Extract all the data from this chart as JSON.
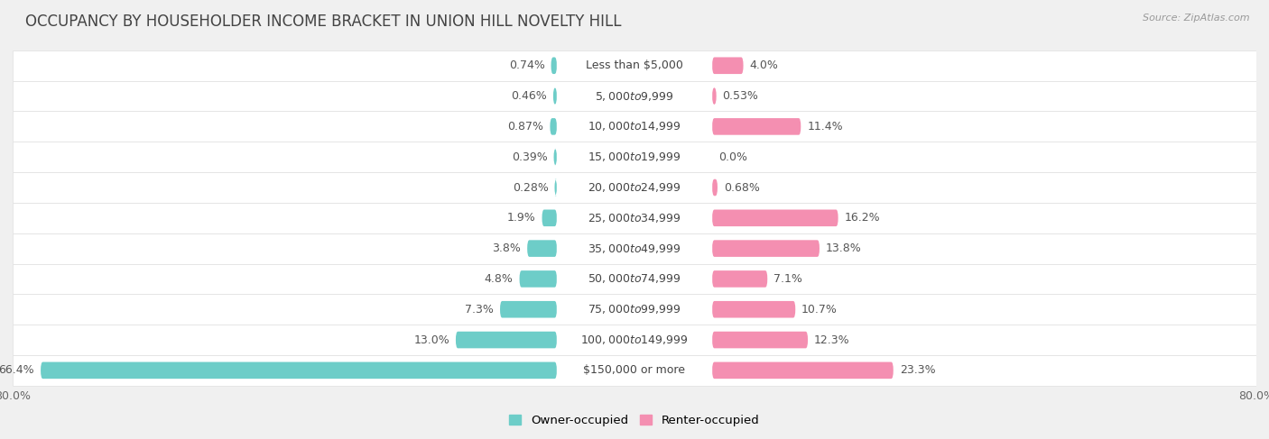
{
  "title": "OCCUPANCY BY HOUSEHOLDER INCOME BRACKET IN UNION HILL NOVELTY HILL",
  "source": "Source: ZipAtlas.com",
  "categories": [
    "Less than $5,000",
    "$5,000 to $9,999",
    "$10,000 to $14,999",
    "$15,000 to $19,999",
    "$20,000 to $24,999",
    "$25,000 to $34,999",
    "$35,000 to $49,999",
    "$50,000 to $74,999",
    "$75,000 to $99,999",
    "$100,000 to $149,999",
    "$150,000 or more"
  ],
  "owner_values": [
    0.74,
    0.46,
    0.87,
    0.39,
    0.28,
    1.9,
    3.8,
    4.8,
    7.3,
    13.0,
    66.4
  ],
  "renter_values": [
    4.0,
    0.53,
    11.4,
    0.0,
    0.68,
    16.2,
    13.8,
    7.1,
    10.7,
    12.3,
    23.3
  ],
  "owner_color": "#6dcdc8",
  "renter_color": "#f48fb1",
  "bg_color": "#f0f0f0",
  "row_bg_even": "#f9f9f9",
  "row_bg_odd": "#efefef",
  "row_line_color": "#e0e0e0",
  "label_color": "#555555",
  "axis_max": 80.0,
  "legend_owner": "Owner-occupied",
  "legend_renter": "Renter-occupied",
  "title_fontsize": 12,
  "label_fontsize": 9,
  "category_fontsize": 9,
  "owner_label_fmt": [
    "0.74%",
    "0.46%",
    "0.87%",
    "0.39%",
    "0.28%",
    "1.9%",
    "3.8%",
    "4.8%",
    "7.3%",
    "13.0%",
    "66.4%"
  ],
  "renter_label_fmt": [
    "4.0%",
    "0.53%",
    "11.4%",
    "0.0%",
    "0.68%",
    "16.2%",
    "13.8%",
    "7.1%",
    "10.7%",
    "12.3%",
    "23.3%"
  ]
}
